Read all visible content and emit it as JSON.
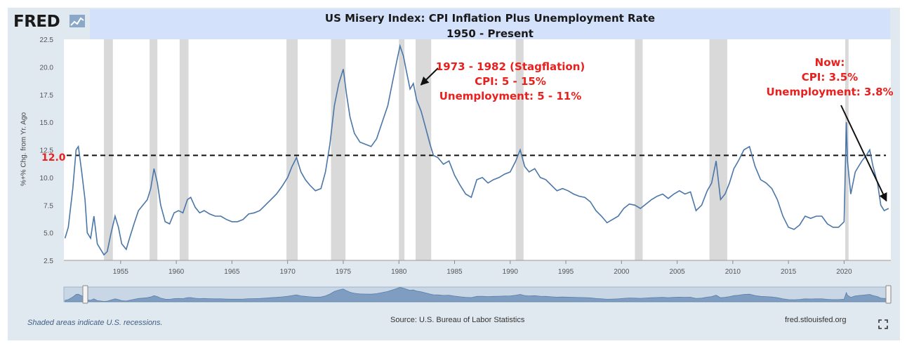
{
  "branding": {
    "logo_text": "FRED",
    "logo_icon": "fred-chart-logo-icon"
  },
  "footer": {
    "note": "Shaded areas indicate U.S. recessions.",
    "source": "Source: U.S. Bureau of Labor Statistics",
    "site": "fred.stlouisfed.org",
    "fullscreen_icon": "fullscreen-icon"
  },
  "annotations": {
    "stagflation": [
      "1973 - 1982 (Stagflation)",
      "CPI: 5 - 15%",
      "Unemployment: 5 - 11%"
    ],
    "now": [
      "Now:",
      "CPI: 3.5%",
      "Unemployment: 3.8%"
    ],
    "reference_label": "12.0"
  },
  "colors": {
    "series": "#4a76a8",
    "annotation": "#e8211e",
    "recession": "#d9d9d9",
    "title_band": "#d4e1fa",
    "frame": "#e1e9f0"
  },
  "chart_data": {
    "type": "line",
    "title": "US Misery Index: CPI Inflation Plus Unemployment Rate",
    "subtitle": "1950 - Present",
    "xlabel": "",
    "ylabel": "%+% Chg. from Yr. Ago",
    "xlim": [
      1949.9,
      2024.2
    ],
    "ylim": [
      2.5,
      22.5
    ],
    "y_ticks": [
      "2.5",
      "5.0",
      "7.5",
      "10.0",
      "12.5",
      "15.0",
      "17.5",
      "20.0",
      "22.5"
    ],
    "x_ticks": [
      "1955",
      "1960",
      "1965",
      "1970",
      "1975",
      "1980",
      "1985",
      "1990",
      "1995",
      "2000",
      "2005",
      "2010",
      "2015",
      "2020"
    ],
    "grid": false,
    "reference_line": 12.0,
    "recessions": [
      [
        1953.5,
        1954.3
      ],
      [
        1957.6,
        1958.3
      ],
      [
        1960.3,
        1961.1
      ],
      [
        1969.9,
        1970.9
      ],
      [
        1973.9,
        1975.2
      ],
      [
        1980.0,
        1980.5
      ],
      [
        1981.5,
        1982.9
      ],
      [
        1990.5,
        1991.2
      ],
      [
        2001.2,
        2001.9
      ],
      [
        2007.9,
        2009.5
      ],
      [
        2020.1,
        2020.4
      ]
    ],
    "series": [
      {
        "x": [
          1950.0,
          1950.3,
          1950.7,
          1951.0,
          1951.2,
          1951.5,
          1951.8,
          1952.0,
          1952.3,
          1952.6,
          1952.9,
          1953.2,
          1953.5,
          1953.8,
          1954.1,
          1954.5,
          1954.8,
          1955.1,
          1955.5,
          1955.8,
          1956.2,
          1956.6,
          1957.0,
          1957.4,
          1957.7,
          1958.0,
          1958.3,
          1958.6,
          1959.0,
          1959.4,
          1959.8,
          1960.2,
          1960.6,
          1961.0,
          1961.3,
          1961.7,
          1962.1,
          1962.5,
          1963.0,
          1963.5,
          1964.0,
          1964.5,
          1965.0,
          1965.5,
          1966.0,
          1966.5,
          1967.0,
          1967.5,
          1968.0,
          1968.5,
          1969.0,
          1969.5,
          1970.0,
          1970.4,
          1970.8,
          1971.2,
          1971.6,
          1972.0,
          1972.5,
          1973.0,
          1973.4,
          1973.8,
          1974.2,
          1974.6,
          1975.0,
          1975.3,
          1975.6,
          1976.0,
          1976.5,
          1977.0,
          1977.5,
          1978.0,
          1978.5,
          1979.0,
          1979.4,
          1979.8,
          1980.1,
          1980.4,
          1980.7,
          1981.0,
          1981.3,
          1981.6,
          1982.0,
          1982.4,
          1982.8,
          1983.1,
          1983.5,
          1984.0,
          1984.5,
          1985.0,
          1985.5,
          1986.0,
          1986.5,
          1987.0,
          1987.5,
          1988.0,
          1988.5,
          1989.0,
          1989.5,
          1990.0,
          1990.5,
          1990.9,
          1991.3,
          1991.7,
          1992.2,
          1992.7,
          1993.2,
          1993.7,
          1994.2,
          1994.7,
          1995.2,
          1995.7,
          1996.2,
          1996.7,
          1997.2,
          1997.7,
          1998.2,
          1998.7,
          1999.2,
          1999.7,
          2000.2,
          2000.7,
          2001.2,
          2001.7,
          2002.2,
          2002.7,
          2003.2,
          2003.7,
          2004.2,
          2004.7,
          2005.2,
          2005.7,
          2006.2,
          2006.7,
          2007.2,
          2007.7,
          2008.1,
          2008.5,
          2008.9,
          2009.3,
          2009.7,
          2010.1,
          2010.5,
          2011.0,
          2011.5,
          2012.0,
          2012.5,
          2013.0,
          2013.5,
          2014.0,
          2014.5,
          2015.0,
          2015.5,
          2016.0,
          2016.5,
          2017.0,
          2017.5,
          2018.0,
          2018.5,
          2019.0,
          2019.5,
          2020.0,
          2020.2,
          2020.3,
          2020.6,
          2021.0,
          2021.3,
          2021.6,
          2022.0,
          2022.3,
          2022.6,
          2023.0,
          2023.3,
          2023.6,
          2024.0
        ],
        "y": [
          4.5,
          5.5,
          9.0,
          12.5,
          12.8,
          10.5,
          8.0,
          5.0,
          4.5,
          6.5,
          4.0,
          3.5,
          3.0,
          3.3,
          4.8,
          6.5,
          5.5,
          4.0,
          3.5,
          4.5,
          5.8,
          7.0,
          7.5,
          8.0,
          9.0,
          10.8,
          9.5,
          7.5,
          6.0,
          5.8,
          6.8,
          7.0,
          6.8,
          8.0,
          8.2,
          7.3,
          6.8,
          7.0,
          6.7,
          6.5,
          6.5,
          6.2,
          6.0,
          6.0,
          6.2,
          6.7,
          6.8,
          7.0,
          7.5,
          8.0,
          8.5,
          9.2,
          10.0,
          11.0,
          11.8,
          10.5,
          9.8,
          9.3,
          8.8,
          9.0,
          10.5,
          13.0,
          16.5,
          18.5,
          19.8,
          17.5,
          15.5,
          14.0,
          13.2,
          13.0,
          12.8,
          13.5,
          15.0,
          16.5,
          18.5,
          20.5,
          21.9,
          21.0,
          19.5,
          18.0,
          18.5,
          17.0,
          16.0,
          14.5,
          13.0,
          12.0,
          11.8,
          11.2,
          11.5,
          10.2,
          9.3,
          8.5,
          8.2,
          9.8,
          10.0,
          9.5,
          9.8,
          10.0,
          10.3,
          10.5,
          11.5,
          12.5,
          11.0,
          10.5,
          10.8,
          10.0,
          9.8,
          9.3,
          8.8,
          9.0,
          8.8,
          8.5,
          8.3,
          8.2,
          7.8,
          7.0,
          6.5,
          5.9,
          6.2,
          6.5,
          7.2,
          7.6,
          7.5,
          7.2,
          7.6,
          8.0,
          8.3,
          8.5,
          8.1,
          8.5,
          8.8,
          8.5,
          8.7,
          7.0,
          7.5,
          8.8,
          9.5,
          11.5,
          8.0,
          8.5,
          9.5,
          10.8,
          11.5,
          12.5,
          12.8,
          11.0,
          9.8,
          9.5,
          9.0,
          8.0,
          6.5,
          5.5,
          5.3,
          5.7,
          6.5,
          6.3,
          6.5,
          6.5,
          5.8,
          5.5,
          5.5,
          6.0,
          15.0,
          11.5,
          8.5,
          10.5,
          11.0,
          11.5,
          12.0,
          12.5,
          11.0,
          9.5,
          7.5,
          7.0,
          7.2
        ]
      }
    ]
  }
}
